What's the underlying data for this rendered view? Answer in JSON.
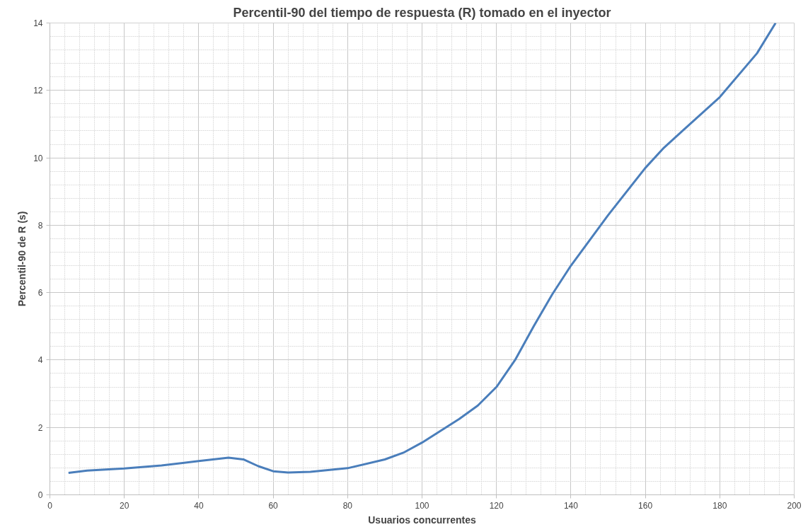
{
  "chart_data": {
    "type": "line",
    "title": "Percentil-90 del tiempo de respuesta (R) tomado en el inyector",
    "xlabel": "Usuarios concurrentes",
    "ylabel": "Percentil-90 de R (s)",
    "x": [
      5,
      10,
      20,
      30,
      40,
      48,
      52,
      56,
      60,
      64,
      70,
      80,
      90,
      95,
      100,
      110,
      115,
      120,
      125,
      130,
      135,
      140,
      150,
      160,
      165,
      170,
      180,
      190,
      195
    ],
    "series": [
      {
        "color": "#4a7ebb",
        "values": [
          0.65,
          0.72,
          0.78,
          0.87,
          1.0,
          1.1,
          1.05,
          0.85,
          0.7,
          0.66,
          0.68,
          0.79,
          1.05,
          1.25,
          1.55,
          2.25,
          2.65,
          3.2,
          4.0,
          5.0,
          5.95,
          6.8,
          8.3,
          9.7,
          10.3,
          10.8,
          11.8,
          13.1,
          14.0
        ]
      }
    ],
    "xlim": [
      0,
      200
    ],
    "xticks": [
      0,
      20,
      40,
      60,
      80,
      100,
      120,
      140,
      160,
      180,
      200
    ],
    "ylim": [
      0,
      14
    ],
    "yticks": [
      0,
      2,
      4,
      6,
      8,
      10,
      12,
      14
    ],
    "grid": true,
    "marker": "none",
    "line_style": "solid"
  }
}
